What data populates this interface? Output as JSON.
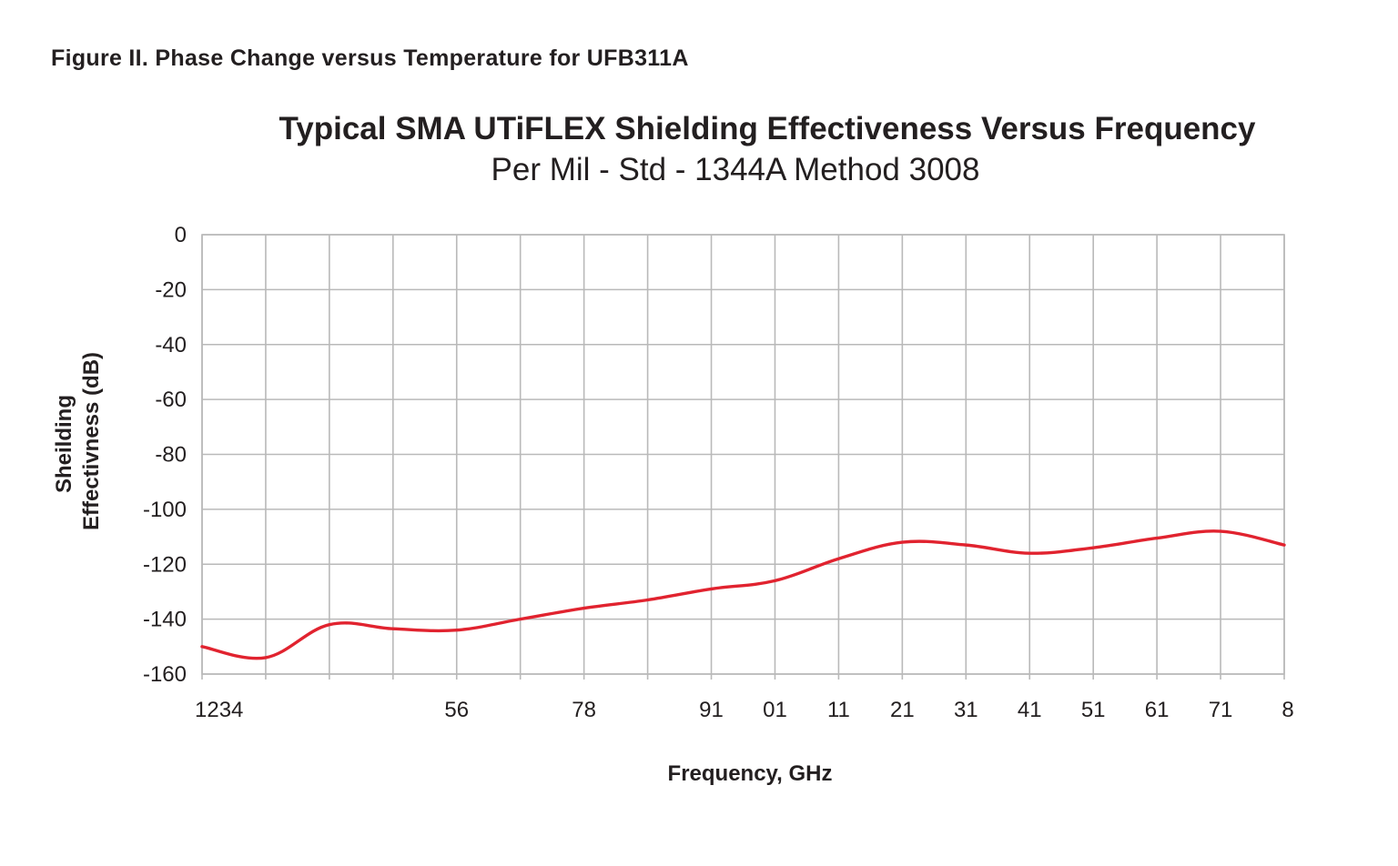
{
  "figure_caption": "Figure II. Phase Change versus Temperature for UFB311A",
  "chart_data": {
    "type": "line",
    "title": "Typical SMA UTiFLEX Shielding Effectiveness Versus Frequency",
    "subtitle": "Per Mil - Std - 1344A Method 3008",
    "xlabel": "Frequency, GHz",
    "ylabel_lines": [
      "Sheilding",
      "Effectivness (dB)"
    ],
    "ylim": [
      -160,
      0
    ],
    "yticks": [
      0,
      -20,
      -40,
      -60,
      -80,
      -100,
      -120,
      -140,
      -160
    ],
    "grid": true,
    "x_positions": [
      0,
      1,
      2,
      3,
      4,
      5,
      6,
      7,
      8,
      9,
      10,
      11,
      12,
      13,
      14,
      15,
      16,
      17
    ],
    "x_tick_labels": [
      "1234",
      "",
      "",
      "",
      "56",
      "",
      "78",
      "",
      "91",
      "01",
      "11",
      "21",
      "31",
      "41",
      "51",
      "61",
      "71",
      "8"
    ],
    "series": [
      {
        "name": "Shielding Effectiveness",
        "color": "#e1232f",
        "x": [
          0,
          1,
          2,
          3,
          4,
          5,
          6,
          7,
          8,
          9,
          10,
          11,
          12,
          13,
          14,
          15,
          16,
          17
        ],
        "values": [
          -150,
          -154,
          -142,
          -143.5,
          -144,
          -140,
          -136,
          -133,
          -129,
          -126,
          -118,
          -112,
          -113,
          -116,
          -114,
          -110.5,
          -108,
          -113
        ]
      }
    ]
  }
}
